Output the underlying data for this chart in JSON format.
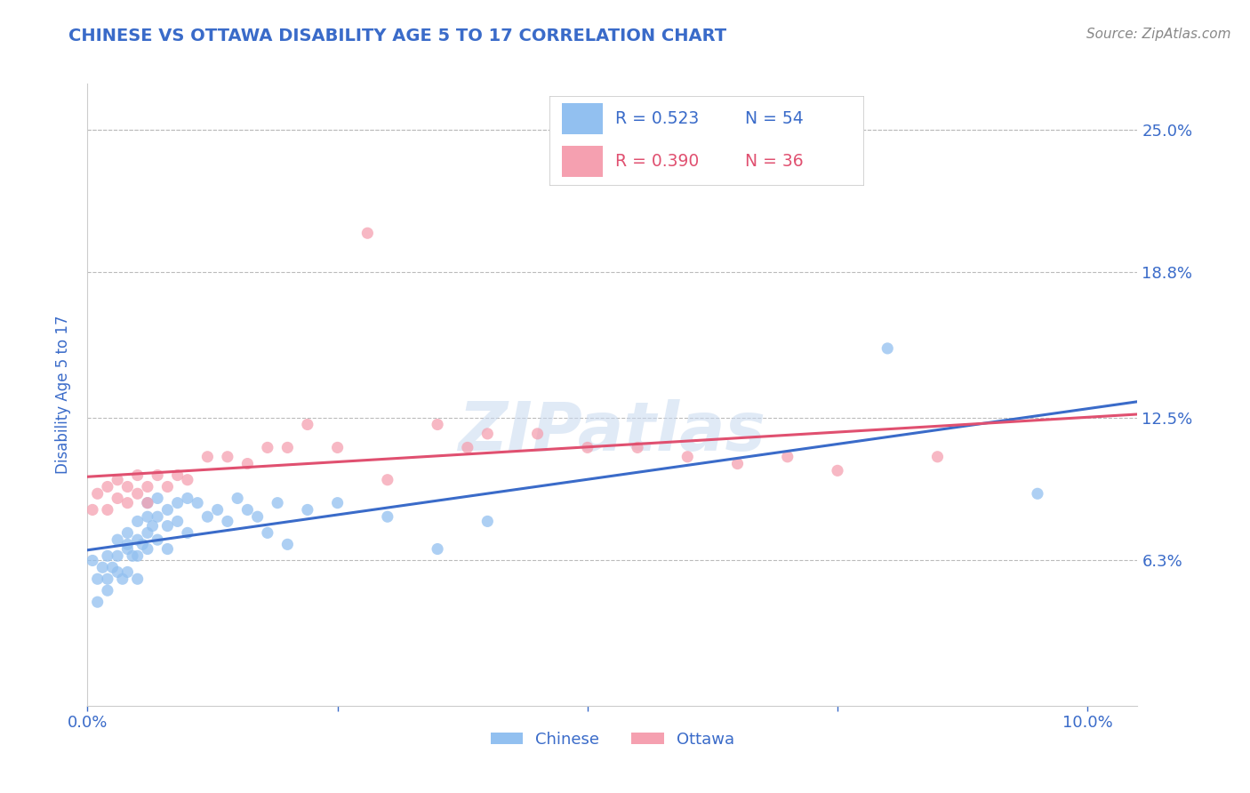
{
  "title": "CHINESE VS OTTAWA DISABILITY AGE 5 TO 17 CORRELATION CHART",
  "source": "Source: ZipAtlas.com",
  "ylabel": "Disability Age 5 to 17",
  "xlim": [
    0.0,
    0.105
  ],
  "ylim": [
    0.0,
    0.27
  ],
  "xticks": [
    0.0,
    0.025,
    0.05,
    0.075,
    0.1
  ],
  "xtick_labels": [
    "0.0%",
    "",
    "",
    "",
    "10.0%"
  ],
  "ytick_labels_right": [
    "6.3%",
    "12.5%",
    "18.8%",
    "25.0%"
  ],
  "ytick_vals_right": [
    0.063,
    0.125,
    0.188,
    0.25
  ],
  "blue_color": "#92c0f0",
  "pink_color": "#f5a0b0",
  "blue_line_color": "#3a6bc9",
  "pink_line_color": "#e05070",
  "title_color": "#3a6bc9",
  "axis_label_color": "#3a6bc9",
  "tick_color": "#3a6bc9",
  "background_color": "#ffffff",
  "chinese_x": [
    0.0005,
    0.001,
    0.001,
    0.0015,
    0.002,
    0.002,
    0.002,
    0.0025,
    0.003,
    0.003,
    0.003,
    0.0035,
    0.004,
    0.004,
    0.004,
    0.004,
    0.0045,
    0.005,
    0.005,
    0.005,
    0.005,
    0.0055,
    0.006,
    0.006,
    0.006,
    0.006,
    0.0065,
    0.007,
    0.007,
    0.007,
    0.008,
    0.008,
    0.008,
    0.009,
    0.009,
    0.01,
    0.01,
    0.011,
    0.012,
    0.013,
    0.014,
    0.015,
    0.016,
    0.017,
    0.018,
    0.019,
    0.02,
    0.022,
    0.025,
    0.03,
    0.035,
    0.04,
    0.08,
    0.095
  ],
  "chinese_y": [
    0.063,
    0.045,
    0.055,
    0.06,
    0.05,
    0.055,
    0.065,
    0.06,
    0.058,
    0.065,
    0.072,
    0.055,
    0.075,
    0.068,
    0.058,
    0.07,
    0.065,
    0.08,
    0.072,
    0.065,
    0.055,
    0.07,
    0.082,
    0.088,
    0.075,
    0.068,
    0.078,
    0.09,
    0.082,
    0.072,
    0.085,
    0.078,
    0.068,
    0.088,
    0.08,
    0.09,
    0.075,
    0.088,
    0.082,
    0.085,
    0.08,
    0.09,
    0.085,
    0.082,
    0.075,
    0.088,
    0.07,
    0.085,
    0.088,
    0.082,
    0.068,
    0.08,
    0.155,
    0.092
  ],
  "ottawa_x": [
    0.0005,
    0.001,
    0.002,
    0.002,
    0.003,
    0.003,
    0.004,
    0.004,
    0.005,
    0.005,
    0.006,
    0.006,
    0.007,
    0.008,
    0.009,
    0.01,
    0.012,
    0.014,
    0.016,
    0.018,
    0.02,
    0.022,
    0.025,
    0.028,
    0.03,
    0.035,
    0.038,
    0.04,
    0.045,
    0.05,
    0.055,
    0.06,
    0.065,
    0.07,
    0.075,
    0.085
  ],
  "ottawa_y": [
    0.085,
    0.092,
    0.085,
    0.095,
    0.09,
    0.098,
    0.088,
    0.095,
    0.1,
    0.092,
    0.095,
    0.088,
    0.1,
    0.095,
    0.1,
    0.098,
    0.108,
    0.108,
    0.105,
    0.112,
    0.112,
    0.122,
    0.112,
    0.205,
    0.098,
    0.122,
    0.112,
    0.118,
    0.118,
    0.112,
    0.112,
    0.108,
    0.105,
    0.108,
    0.102,
    0.108
  ]
}
